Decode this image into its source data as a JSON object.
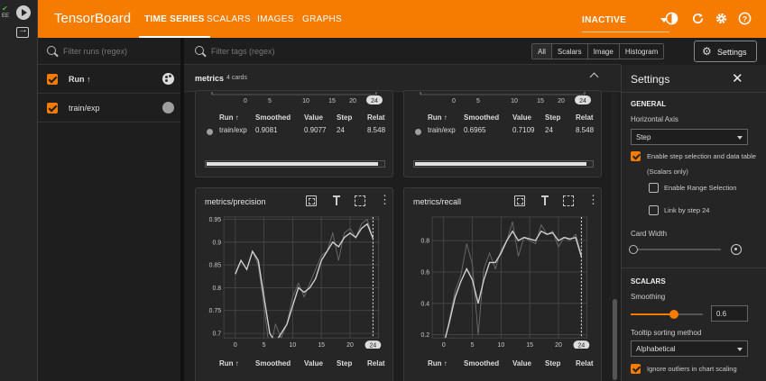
{
  "strip": {
    "badge_line1": "",
    "badge_line2": "EE"
  },
  "header": {
    "title": "TensorBoard",
    "tabs": [
      {
        "label": "TIME SERIES",
        "active": true
      },
      {
        "label": "SCALARS"
      },
      {
        "label": "IMAGES"
      },
      {
        "label": "GRAPHS"
      }
    ],
    "status": "INACTIVE",
    "accent": "#f57c00"
  },
  "runs": {
    "filter_placeholder": "Filter runs (regex)",
    "header_label": "Run ↑",
    "items": [
      {
        "label": "train/exp",
        "color": "#9e9e9e"
      }
    ]
  },
  "main": {
    "tag_placeholder": "Filter tags (regex)",
    "type_buttons": [
      "All",
      "Scalars",
      "Image",
      "Histogram"
    ],
    "settings_button": "Settings",
    "group": {
      "title": "metrics",
      "count": "4 cards"
    },
    "cards": [
      {
        "title": "",
        "x_ticks": [
          "0",
          "5",
          "10",
          "15",
          "20"
        ],
        "step_label": "24",
        "table": {
          "headers": [
            "Run ↑",
            "Smoothed",
            "Value",
            "Step",
            "Relat"
          ],
          "row": [
            "train/exp",
            "0.9081",
            "0.9077",
            "24",
            "8.548"
          ]
        }
      },
      {
        "title": "",
        "x_ticks": [
          "0",
          "5",
          "10",
          "15",
          "20"
        ],
        "step_label": "24",
        "table": {
          "headers": [
            "Run ↑",
            "Smoothed",
            "Value",
            "Step",
            "Relat"
          ],
          "row": [
            "train/exp",
            "0.6965",
            "0.7109",
            "24",
            "8.548"
          ]
        }
      },
      {
        "title": "metrics/precision",
        "y_ticks": [
          "0.95",
          "0.9",
          "0.85",
          "0.8",
          "0.75",
          "0.7"
        ],
        "x_ticks": [
          "0",
          "5",
          "10",
          "15",
          "20"
        ],
        "step_label": "24",
        "table_headers": [
          "Run ↑",
          "Smoothed",
          "Value",
          "Step",
          "Relat"
        ]
      },
      {
        "title": "metrics/recall",
        "y_ticks": [
          "0.8",
          "0.6",
          "0.4",
          "0.2"
        ],
        "x_ticks": [
          "0",
          "5",
          "10",
          "15",
          "20"
        ],
        "step_label": "24",
        "table_headers": [
          "Run ↑",
          "Smoothed",
          "Value",
          "Step",
          "Relat"
        ]
      }
    ]
  },
  "chart_data": [
    {
      "type": "line",
      "title": "metrics/precision",
      "xlim": [
        -2,
        25
      ],
      "ylim": [
        0.69,
        0.955
      ],
      "x": [
        0,
        1,
        2,
        3,
        4,
        5,
        6,
        7,
        8,
        9,
        10,
        11,
        12,
        13,
        14,
        15,
        16,
        17,
        18,
        19,
        20,
        21,
        22,
        23,
        24
      ],
      "series": [
        {
          "values": [
            0.83,
            0.86,
            0.84,
            0.88,
            0.85,
            0.76,
            0.66,
            0.72,
            0.69,
            0.72,
            0.78,
            0.81,
            0.78,
            0.81,
            0.84,
            0.87,
            0.88,
            0.92,
            0.86,
            0.92,
            0.93,
            0.91,
            0.94,
            0.95,
            0.9077
          ]
        },
        {
          "values": [
            0.83,
            0.86,
            0.84,
            0.88,
            0.86,
            0.78,
            0.7,
            0.68,
            0.7,
            0.72,
            0.76,
            0.8,
            0.79,
            0.8,
            0.82,
            0.86,
            0.88,
            0.9,
            0.89,
            0.91,
            0.92,
            0.91,
            0.93,
            0.94,
            0.9081
          ]
        }
      ]
    },
    {
      "type": "line",
      "title": "metrics/recall",
      "xlim": [
        -2,
        25
      ],
      "ylim": [
        0.18,
        0.95
      ],
      "x": [
        0,
        1,
        2,
        3,
        4,
        5,
        6,
        7,
        8,
        9,
        10,
        11,
        12,
        13,
        14,
        15,
        16,
        17,
        18,
        19,
        20,
        21,
        22,
        23,
        24
      ],
      "series": [
        {
          "values": [
            0.12,
            0.3,
            0.48,
            0.58,
            0.78,
            0.65,
            0.2,
            0.62,
            0.72,
            0.62,
            0.74,
            0.8,
            0.92,
            0.7,
            0.82,
            0.8,
            0.78,
            0.9,
            0.84,
            0.86,
            0.76,
            0.82,
            0.8,
            0.84,
            0.7109
          ]
        },
        {
          "values": [
            0.14,
            0.28,
            0.44,
            0.54,
            0.62,
            0.55,
            0.4,
            0.55,
            0.66,
            0.66,
            0.72,
            0.8,
            0.86,
            0.8,
            0.82,
            0.81,
            0.8,
            0.86,
            0.84,
            0.85,
            0.8,
            0.82,
            0.81,
            0.82,
            0.6965
          ]
        }
      ]
    }
  ],
  "settings": {
    "title": "Settings",
    "general": {
      "heading": "GENERAL",
      "horizontal_axis_label": "Horizontal Axis",
      "horizontal_axis_value": "Step",
      "enable_step_selection": "Enable step selection and data table",
      "scalars_only": "(Scalars only)",
      "enable_range": "Enable Range Selection",
      "link_by_step": "Link by step 24",
      "card_width_label": "Card Width"
    },
    "scalars": {
      "heading": "SCALARS",
      "smoothing_label": "Smoothing",
      "smoothing_value": "0.6",
      "smoothing_level": 0.6,
      "tooltip_label": "Tooltip sorting method",
      "tooltip_value": "Alphabetical",
      "ignore_outliers": "Ignore outliers in chart scaling"
    }
  }
}
